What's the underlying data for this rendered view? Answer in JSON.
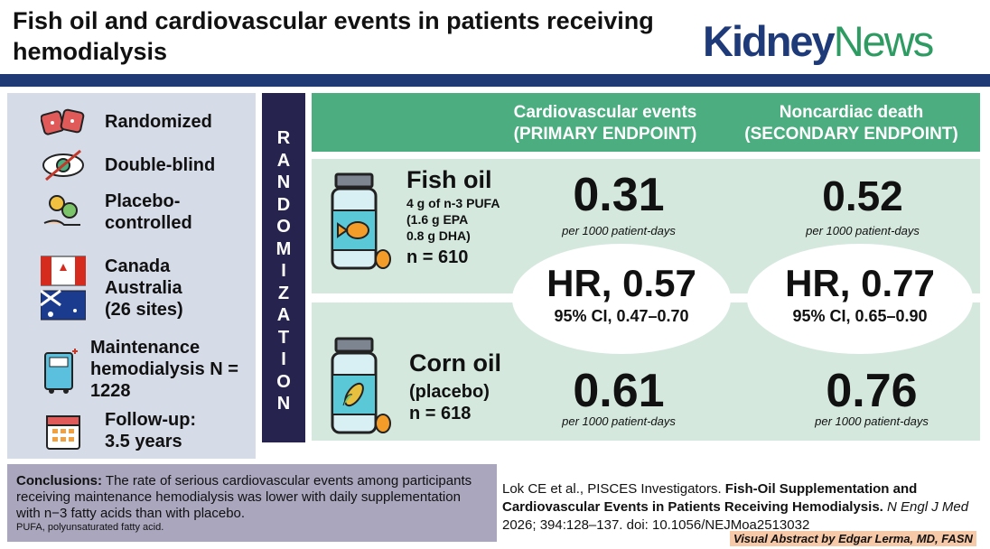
{
  "title": "Fish oil and cardiovascular events in patients receiving hemodialysis",
  "logo": {
    "part1": "Kidney",
    "part2": "News"
  },
  "design": [
    {
      "icon": "dice-icon",
      "label": "Randomized"
    },
    {
      "icon": "blind-eye-icon",
      "label": "Double-blind"
    },
    {
      "icon": "pills-hand-icon",
      "label": "Placebo-controlled"
    },
    {
      "icon": "flags-icon",
      "label": "Canada Australia (26 sites)"
    },
    {
      "icon": "dialysis-machine-icon",
      "label": "Maintenance hemodialysis N = 1228"
    },
    {
      "icon": "calendar-icon",
      "label": "Follow-up: 3.5 years"
    }
  ],
  "randomization": "RANDOMIZATION",
  "headers": {
    "primary": "Cardiovascular events (PRIMARY ENDPOINT)",
    "secondary": "Noncardiac death (SECONDARY ENDPOINT)"
  },
  "arms": [
    {
      "name": "Fish oil",
      "detail1": "4 g of n-3 PUFA",
      "detail2": "(1.6 g EPA",
      "detail3": "0.8 g DHA)",
      "n": "n = 610",
      "primary": "0.31",
      "secondary": "0.52"
    },
    {
      "name": "Corn oil",
      "detail1": "(placebo)",
      "n": "n = 618",
      "primary": "0.61",
      "secondary": "0.76"
    }
  ],
  "unit": "per 1000 patient-days",
  "hr": [
    {
      "hr": "HR, 0.57",
      "ci": "95% CI, 0.47–0.70"
    },
    {
      "hr": "HR, 0.77",
      "ci": "95% CI, 0.65–0.90"
    }
  ],
  "conclusions": {
    "label": "Conclusions:",
    "text": " The rate of serious cardiovascular events among participants receiving maintenance hemodialysis was lower with daily supplementation with n−3 fatty acids than with placebo.",
    "footnote": "PUFA, polyunsaturated fatty acid."
  },
  "reference": {
    "authors": "Lok CE et al., PISCES Investigators. ",
    "title": "Fish-Oil Supplementation and Cardiovascular Events in Patients Receiving Hemodialysis.",
    "journal": " N Engl J Med",
    "citation": " 2026; 394:128–137. doi: 10.1056/NEJMoa2513032"
  },
  "credit": "Visual Abstract by Edgar Lerma, MD, FASN"
}
